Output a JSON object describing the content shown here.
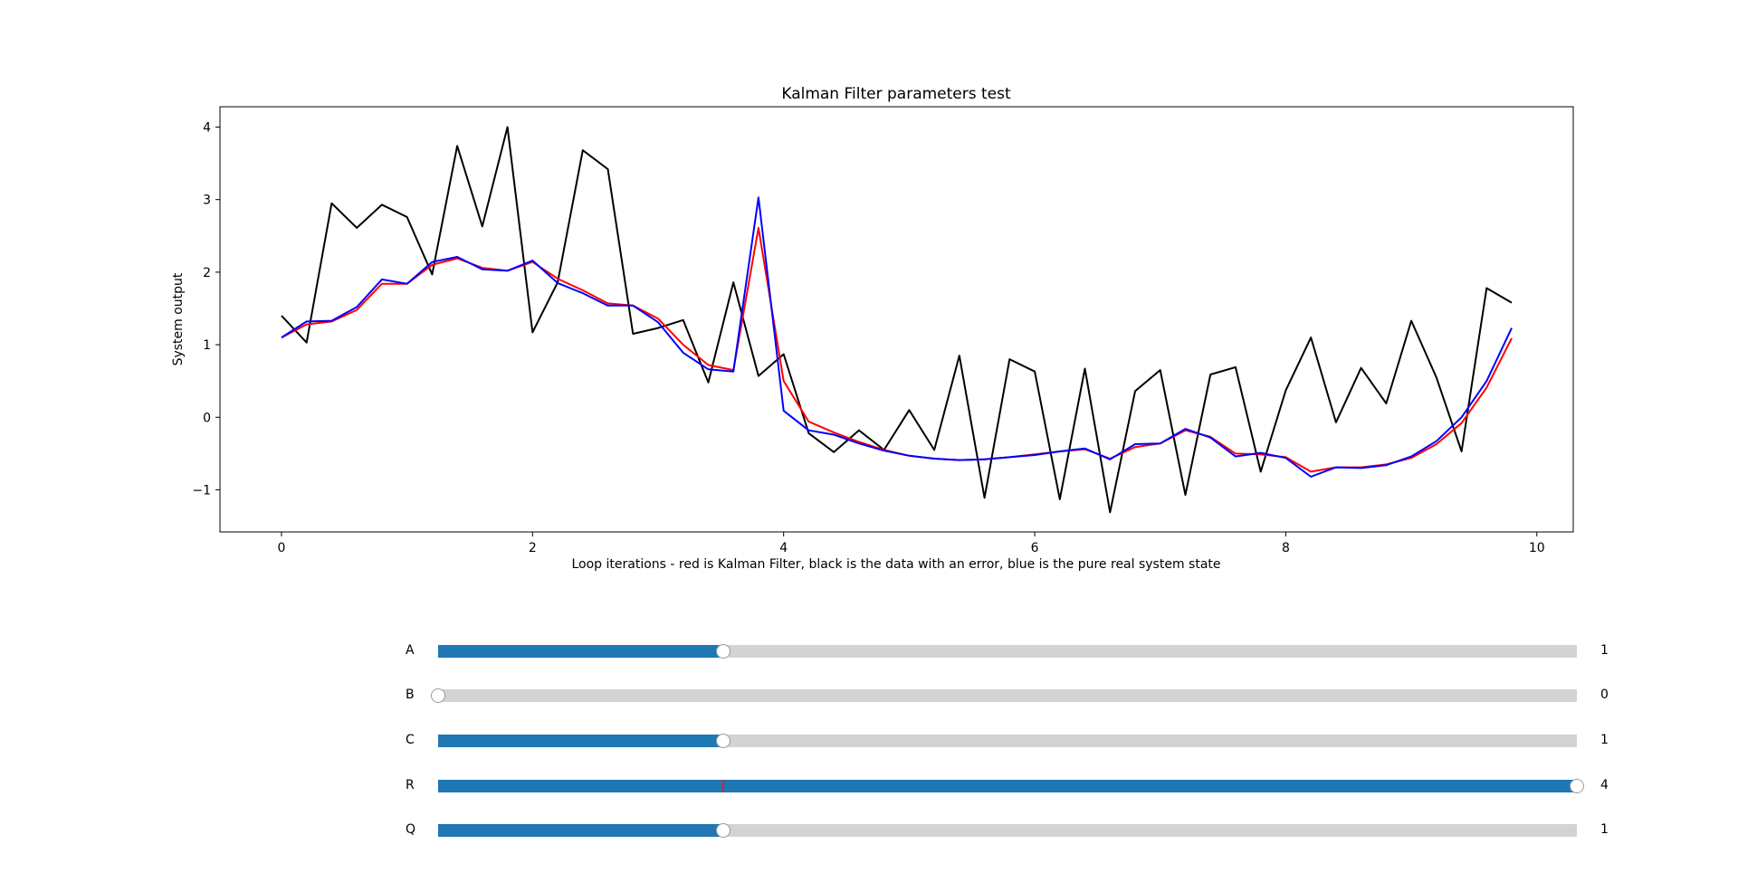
{
  "chart_data": {
    "type": "line",
    "title": "Kalman Filter parameters test",
    "xlabel": "Loop iterations - red is Kalman Filter, black is the data with an error, blue is the pure real system state",
    "ylabel": "System output",
    "xlim": [
      -0.49,
      10.29
    ],
    "ylim": [
      -1.58,
      4.28
    ],
    "xticks": [
      0,
      2,
      4,
      6,
      8,
      10
    ],
    "yticks": [
      -1,
      0,
      1,
      2,
      3,
      4
    ],
    "grid": false,
    "x": [
      0.0,
      0.2,
      0.4,
      0.6,
      0.8,
      1.0,
      1.2,
      1.4,
      1.6,
      1.8,
      2.0,
      2.2,
      2.4,
      2.6,
      2.8,
      3.0,
      3.2,
      3.4,
      3.6,
      3.8,
      4.0,
      4.2,
      4.4,
      4.6,
      4.8,
      5.0,
      5.2,
      5.4,
      5.6,
      5.8,
      6.0,
      6.2,
      6.4,
      6.6,
      6.8,
      7.0,
      7.2,
      7.4,
      7.6,
      7.8,
      8.0,
      8.2,
      8.4,
      8.6,
      8.8,
      9.0,
      9.2,
      9.4,
      9.6,
      9.8
    ],
    "series": [
      {
        "color": "#000000",
        "values": [
          1.4,
          1.03,
          2.95,
          2.61,
          2.93,
          2.76,
          1.97,
          3.74,
          2.63,
          4.0,
          1.17,
          1.86,
          3.68,
          3.42,
          1.15,
          1.23,
          1.34,
          0.48,
          1.86,
          0.57,
          0.87,
          -0.22,
          -0.48,
          -0.18,
          -0.45,
          0.1,
          -0.45,
          0.85,
          -1.11,
          0.8,
          0.63,
          -1.13,
          0.67,
          -1.31,
          0.36,
          0.65,
          -1.07,
          0.59,
          0.69,
          -0.75,
          0.37,
          1.1,
          -0.07,
          0.68,
          0.19,
          1.33,
          0.55,
          -0.47,
          1.78,
          1.58
        ]
      },
      {
        "color": "#ff0000",
        "values": [
          1.1,
          1.28,
          1.32,
          1.48,
          1.84,
          1.84,
          2.1,
          2.19,
          2.06,
          2.02,
          2.14,
          1.91,
          1.75,
          1.57,
          1.54,
          1.36,
          1.0,
          0.72,
          0.65,
          2.61,
          0.5,
          -0.06,
          -0.21,
          -0.34,
          -0.45,
          -0.53,
          -0.57,
          -0.59,
          -0.58,
          -0.55,
          -0.51,
          -0.47,
          -0.44,
          -0.57,
          -0.41,
          -0.36,
          -0.18,
          -0.27,
          -0.5,
          -0.51,
          -0.55,
          -0.75,
          -0.69,
          -0.69,
          -0.65,
          -0.56,
          -0.37,
          -0.08,
          0.41,
          1.09
        ]
      },
      {
        "color": "#0000ff",
        "values": [
          1.1,
          1.32,
          1.33,
          1.52,
          1.9,
          1.84,
          2.14,
          2.21,
          2.04,
          2.02,
          2.16,
          1.85,
          1.71,
          1.54,
          1.54,
          1.31,
          0.89,
          0.66,
          0.63,
          3.03,
          0.09,
          -0.18,
          -0.24,
          -0.36,
          -0.46,
          -0.53,
          -0.57,
          -0.59,
          -0.58,
          -0.55,
          -0.52,
          -0.47,
          -0.43,
          -0.58,
          -0.37,
          -0.36,
          -0.16,
          -0.28,
          -0.54,
          -0.49,
          -0.56,
          -0.82,
          -0.69,
          -0.7,
          -0.66,
          -0.54,
          -0.33,
          0.0,
          0.5,
          1.23
        ]
      }
    ]
  },
  "sliders": [
    {
      "label": "A",
      "value_text": "1",
      "value": 1,
      "min": 0,
      "max": 4,
      "init": 1
    },
    {
      "label": "B",
      "value_text": "0",
      "value": 0,
      "min": 0,
      "max": 4,
      "init": 0
    },
    {
      "label": "C",
      "value_text": "1",
      "value": 1,
      "min": 0,
      "max": 4,
      "init": 1
    },
    {
      "label": "R",
      "value_text": "4",
      "value": 4,
      "min": 0,
      "max": 4,
      "init": 1
    },
    {
      "label": "Q",
      "value_text": "1",
      "value": 1,
      "min": 0,
      "max": 4,
      "init": 1
    }
  ]
}
